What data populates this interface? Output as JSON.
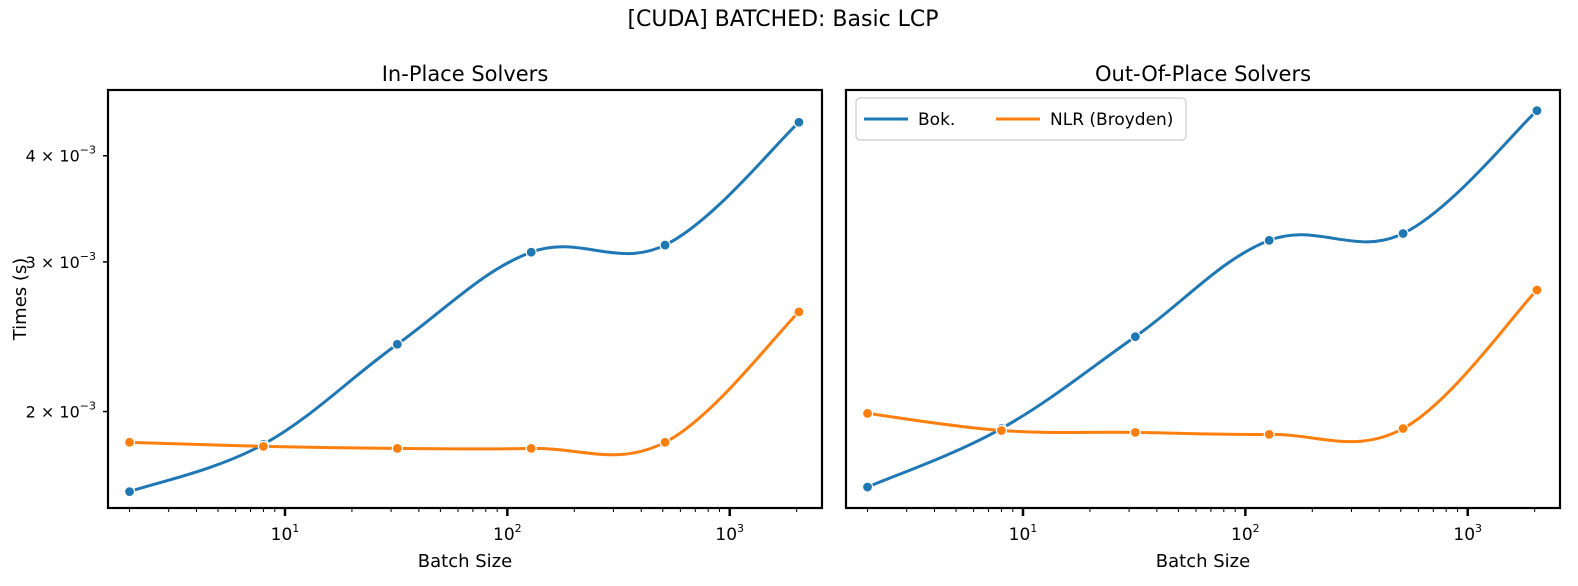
{
  "figure": {
    "title": "[CUDA] BATCHED: Basic LCP"
  },
  "colors": {
    "bok": "#1f77b4",
    "nlr": "#ff7f0e"
  },
  "chart_data": [
    {
      "type": "line",
      "title": "In-Place Solvers",
      "xlabel": "Batch Size",
      "ylabel": "Times (s)",
      "xscale": "log",
      "yscale": "log",
      "xlim": [
        1.6,
        2600
      ],
      "ylim": [
        0.00154,
        0.00478
      ],
      "x": [
        2,
        8,
        32,
        128,
        512,
        2048
      ],
      "xticks": [
        {
          "value": 10,
          "label": "10",
          "exp": "1"
        },
        {
          "value": 100,
          "label": "10",
          "exp": "2"
        },
        {
          "value": 1000,
          "label": "10",
          "exp": "3"
        }
      ],
      "yticks": [
        {
          "value": 0.002,
          "label": "2 × 10",
          "exp": "−3"
        },
        {
          "value": 0.003,
          "label": "3 × 10",
          "exp": "−3"
        },
        {
          "value": 0.004,
          "label": "4 × 10",
          "exp": "−3"
        }
      ],
      "series": [
        {
          "name": "Bok.",
          "color": "#1f77b4",
          "values": [
            0.00161,
            0.00183,
            0.0024,
            0.00308,
            0.00314,
            0.00438
          ]
        },
        {
          "name": "NLR (Broyden)",
          "color": "#ff7f0e",
          "values": [
            0.00184,
            0.00182,
            0.00181,
            0.00181,
            0.00184,
            0.00262
          ]
        }
      ],
      "legend": null,
      "grid": false
    },
    {
      "type": "line",
      "title": "Out-Of-Place Solvers",
      "xlabel": "Batch Size",
      "ylabel": "",
      "xscale": "log",
      "yscale": "log",
      "xlim": [
        1.6,
        2600
      ],
      "ylim": [
        0.00154,
        0.00478
      ],
      "x": [
        2,
        8,
        32,
        128,
        512,
        2048
      ],
      "xticks": [
        {
          "value": 10,
          "label": "10",
          "exp": "1"
        },
        {
          "value": 100,
          "label": "10",
          "exp": "2"
        },
        {
          "value": 1000,
          "label": "10",
          "exp": "3"
        }
      ],
      "yticks": [],
      "series": [
        {
          "name": "Bok.",
          "color": "#1f77b4",
          "values": [
            0.00163,
            0.00191,
            0.00245,
            0.00318,
            0.00324,
            0.00452
          ]
        },
        {
          "name": "NLR (Broyden)",
          "color": "#ff7f0e",
          "values": [
            0.00199,
            0.0019,
            0.00189,
            0.00188,
            0.00191,
            0.00278
          ]
        }
      ],
      "legend": {
        "placement": "top-left",
        "entries": [
          "Bok.",
          "NLR (Broyden)"
        ]
      },
      "grid": false
    }
  ]
}
